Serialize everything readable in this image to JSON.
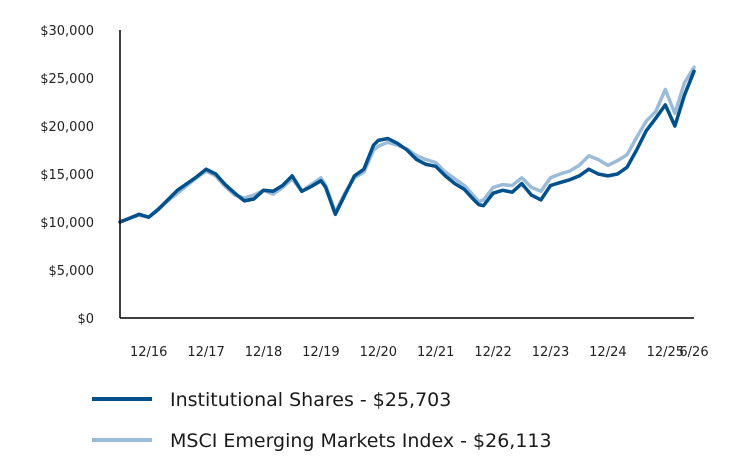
{
  "chart_data": {
    "type": "line",
    "ylim": [
      0,
      30000
    ],
    "y_ticks": [
      {
        "value": 0,
        "label": "$0"
      },
      {
        "value": 5000,
        "label": "$5,000"
      },
      {
        "value": 10000,
        "label": "$10,000"
      },
      {
        "value": 15000,
        "label": "$15,000"
      },
      {
        "value": 20000,
        "label": "$20,000"
      },
      {
        "value": 25000,
        "label": "$25,000"
      },
      {
        "value": 30000,
        "label": "$30,000"
      }
    ],
    "x_range": [
      "2016-06",
      "2026-06"
    ],
    "x_ticks": [
      {
        "value": "2016-12",
        "label": "12/16"
      },
      {
        "value": "2017-12",
        "label": "12/17"
      },
      {
        "value": "2018-12",
        "label": "12/18"
      },
      {
        "value": "2019-12",
        "label": "12/19"
      },
      {
        "value": "2020-12",
        "label": "12/20"
      },
      {
        "value": "2021-12",
        "label": "12/21"
      },
      {
        "value": "2022-12",
        "label": "12/22"
      },
      {
        "value": "2023-12",
        "label": "12/23"
      },
      {
        "value": "2024-12",
        "label": "12/24"
      },
      {
        "value": "2025-12",
        "label": "12/25"
      },
      {
        "value": "2026-06",
        "label": "6/26"
      }
    ],
    "legend_position": "bottom",
    "grid": false,
    "series": [
      {
        "name": "MSCI Emerging Markets Index",
        "legend_label": "MSCI Emerging Markets Index - $26,113",
        "color": "#9bbcd8",
        "points": [
          [
            "2016-06",
            10000
          ],
          [
            "2016-08",
            10400
          ],
          [
            "2016-10",
            10700
          ],
          [
            "2016-12",
            10500
          ],
          [
            "2017-02",
            11400
          ],
          [
            "2017-04",
            12200
          ],
          [
            "2017-06",
            13000
          ],
          [
            "2017-08",
            13800
          ],
          [
            "2017-10",
            14600
          ],
          [
            "2017-12",
            15300
          ],
          [
            "2018-02",
            14800
          ],
          [
            "2018-04",
            13700
          ],
          [
            "2018-06",
            12800
          ],
          [
            "2018-08",
            12500
          ],
          [
            "2018-10",
            12800
          ],
          [
            "2018-12",
            13300
          ],
          [
            "2019-02",
            12900
          ],
          [
            "2019-04",
            13600
          ],
          [
            "2019-06",
            14500
          ],
          [
            "2019-08",
            13200
          ],
          [
            "2019-10",
            13900
          ],
          [
            "2019-12",
            14600
          ],
          [
            "2020-01",
            13800
          ],
          [
            "2020-03",
            11000
          ],
          [
            "2020-05",
            13000
          ],
          [
            "2020-07",
            14600
          ],
          [
            "2020-09",
            15200
          ],
          [
            "2020-11",
            17500
          ],
          [
            "2020-12",
            17900
          ],
          [
            "2021-02",
            18300
          ],
          [
            "2021-04",
            18000
          ],
          [
            "2021-06",
            17600
          ],
          [
            "2021-08",
            16900
          ],
          [
            "2021-10",
            16500
          ],
          [
            "2021-12",
            16200
          ],
          [
            "2022-02",
            15200
          ],
          [
            "2022-04",
            14500
          ],
          [
            "2022-06",
            13800
          ],
          [
            "2022-08",
            12700
          ],
          [
            "2022-09",
            12100
          ],
          [
            "2022-10",
            12300
          ],
          [
            "2022-12",
            13600
          ],
          [
            "2023-02",
            13900
          ],
          [
            "2023-04",
            13800
          ],
          [
            "2023-06",
            14600
          ],
          [
            "2023-08",
            13600
          ],
          [
            "2023-10",
            13200
          ],
          [
            "2023-12",
            14600
          ],
          [
            "2024-02",
            15000
          ],
          [
            "2024-04",
            15300
          ],
          [
            "2024-06",
            15900
          ],
          [
            "2024-08",
            16900
          ],
          [
            "2024-10",
            16500
          ],
          [
            "2024-12",
            15900
          ],
          [
            "2025-02",
            16400
          ],
          [
            "2025-04",
            17000
          ],
          [
            "2025-06",
            18800
          ],
          [
            "2025-08",
            20500
          ],
          [
            "2025-10",
            21500
          ],
          [
            "2025-12",
            23800
          ],
          [
            "2026-02",
            21300
          ],
          [
            "2026-04",
            24500
          ],
          [
            "2026-06",
            26113
          ]
        ]
      },
      {
        "name": "Institutional Shares",
        "legend_label": "Institutional Shares - $25,703",
        "color": "#00508c",
        "points": [
          [
            "2016-06",
            10000
          ],
          [
            "2016-08",
            10400
          ],
          [
            "2016-10",
            10800
          ],
          [
            "2016-12",
            10500
          ],
          [
            "2017-02",
            11300
          ],
          [
            "2017-04",
            12300
          ],
          [
            "2017-06",
            13300
          ],
          [
            "2017-08",
            14000
          ],
          [
            "2017-10",
            14700
          ],
          [
            "2017-12",
            15500
          ],
          [
            "2018-02",
            15000
          ],
          [
            "2018-04",
            13900
          ],
          [
            "2018-06",
            13000
          ],
          [
            "2018-08",
            12200
          ],
          [
            "2018-10",
            12400
          ],
          [
            "2018-12",
            13300
          ],
          [
            "2019-02",
            13200
          ],
          [
            "2019-04",
            13800
          ],
          [
            "2019-06",
            14800
          ],
          [
            "2019-08",
            13200
          ],
          [
            "2019-10",
            13700
          ],
          [
            "2019-12",
            14300
          ],
          [
            "2020-01",
            13600
          ],
          [
            "2020-03",
            10800
          ],
          [
            "2020-05",
            12800
          ],
          [
            "2020-07",
            14800
          ],
          [
            "2020-09",
            15500
          ],
          [
            "2020-11",
            18000
          ],
          [
            "2020-12",
            18500
          ],
          [
            "2021-02",
            18700
          ],
          [
            "2021-04",
            18200
          ],
          [
            "2021-06",
            17500
          ],
          [
            "2021-08",
            16500
          ],
          [
            "2021-10",
            16000
          ],
          [
            "2021-12",
            15800
          ],
          [
            "2022-02",
            14800
          ],
          [
            "2022-04",
            14000
          ],
          [
            "2022-06",
            13400
          ],
          [
            "2022-08",
            12300
          ],
          [
            "2022-09",
            11800
          ],
          [
            "2022-10",
            11700
          ],
          [
            "2022-12",
            13000
          ],
          [
            "2023-02",
            13300
          ],
          [
            "2023-04",
            13100
          ],
          [
            "2023-06",
            14000
          ],
          [
            "2023-08",
            12800
          ],
          [
            "2023-10",
            12300
          ],
          [
            "2023-12",
            13800
          ],
          [
            "2024-02",
            14100
          ],
          [
            "2024-04",
            14400
          ],
          [
            "2024-06",
            14800
          ],
          [
            "2024-08",
            15500
          ],
          [
            "2024-10",
            15000
          ],
          [
            "2024-12",
            14800
          ],
          [
            "2025-02",
            15000
          ],
          [
            "2025-04",
            15700
          ],
          [
            "2025-06",
            17500
          ],
          [
            "2025-08",
            19500
          ],
          [
            "2025-10",
            20800
          ],
          [
            "2025-12",
            22200
          ],
          [
            "2026-02",
            20000
          ],
          [
            "2026-04",
            23200
          ],
          [
            "2026-06",
            25703
          ]
        ]
      }
    ]
  }
}
